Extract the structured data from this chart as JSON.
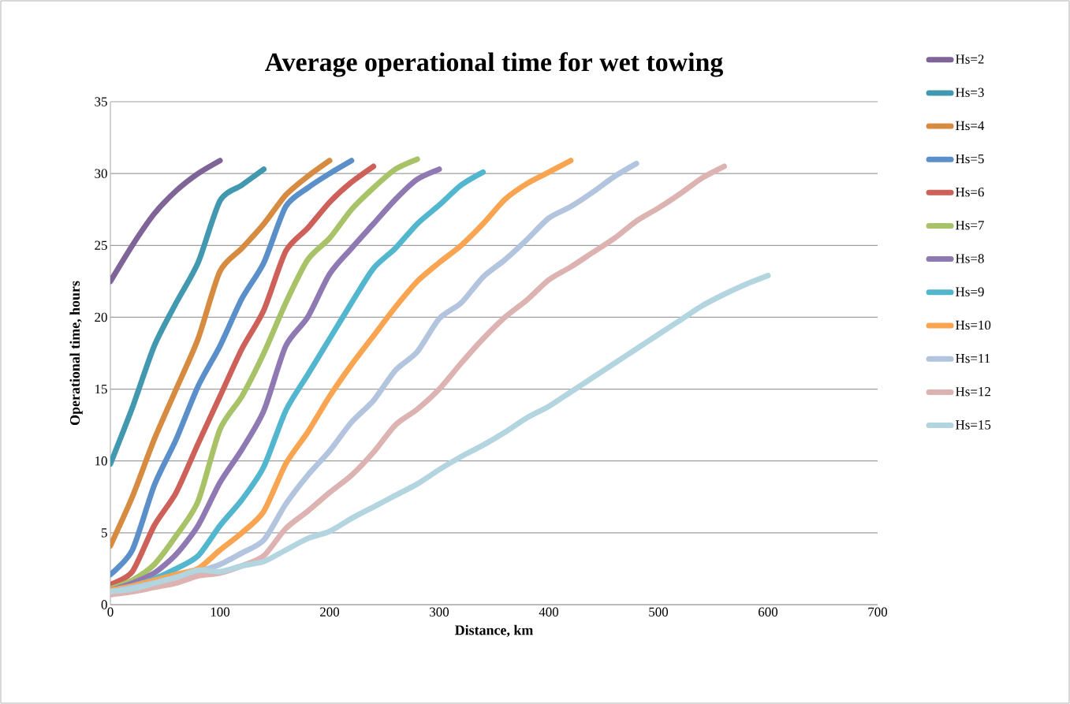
{
  "chart_data": {
    "type": "line",
    "title": "Average operational time for wet towing",
    "xlabel": "Distance, km",
    "ylabel": "Operational time, hours",
    "xlim": [
      0,
      700
    ],
    "xticks": [
      0,
      100,
      200,
      300,
      400,
      500,
      600,
      700
    ],
    "ylim": [
      0,
      35
    ],
    "yticks": [
      0,
      5,
      10,
      15,
      20,
      25,
      30,
      35
    ],
    "grid": "y",
    "legend": "right",
    "marker": "none",
    "line_style": "solid",
    "series": [
      {
        "name": "Hs=2",
        "color": "#7f6497",
        "x": [
          0,
          20,
          40,
          60,
          80,
          100
        ],
        "values": [
          22.5,
          25,
          27.2,
          28.8,
          30,
          30.9
        ]
      },
      {
        "name": "Hs=3",
        "color": "#4198af",
        "x": [
          0,
          20,
          40,
          60,
          80,
          100,
          120,
          140
        ],
        "values": [
          9.8,
          13.7,
          18,
          21,
          23.8,
          28.1,
          29.2,
          30.3
        ]
      },
      {
        "name": "Hs=4",
        "color": "#d68b41",
        "x": [
          0,
          20,
          40,
          60,
          80,
          100,
          120,
          140,
          160,
          180,
          200
        ],
        "values": [
          4.1,
          7.5,
          11.5,
          15,
          18.5,
          23.2,
          24.8,
          26.5,
          28.5,
          29.8,
          30.9
        ]
      },
      {
        "name": "Hs=5",
        "color": "#5b8fc9",
        "x": [
          0,
          20,
          40,
          60,
          80,
          100,
          120,
          140,
          160,
          180,
          200,
          220
        ],
        "values": [
          2.1,
          3.8,
          8.3,
          11.5,
          15.2,
          18,
          21.3,
          23.8,
          27.7,
          29,
          30,
          30.9
        ]
      },
      {
        "name": "Hs=6",
        "color": "#cd615a",
        "x": [
          0,
          20,
          40,
          60,
          80,
          100,
          120,
          140,
          160,
          180,
          200,
          220,
          240
        ],
        "values": [
          1.4,
          2.3,
          5.5,
          7.8,
          11.2,
          14.5,
          17.8,
          20.5,
          24.6,
          26.2,
          28,
          29.4,
          30.5
        ]
      },
      {
        "name": "Hs=7",
        "color": "#a7c267",
        "x": [
          0,
          20,
          40,
          60,
          80,
          100,
          120,
          140,
          160,
          180,
          200,
          220,
          240,
          260,
          280
        ],
        "values": [
          1.1,
          1.7,
          2.8,
          4.8,
          7.2,
          12.2,
          14.5,
          17.5,
          21,
          24,
          25.5,
          27.5,
          29,
          30.3,
          31
        ]
      },
      {
        "name": "Hs=8",
        "color": "#8f79b3",
        "x": [
          0,
          20,
          40,
          60,
          80,
          100,
          120,
          140,
          160,
          180,
          200,
          220,
          240,
          260,
          280,
          300
        ],
        "values": [
          1.0,
          1.5,
          2.2,
          3.5,
          5.5,
          8.5,
          10.8,
          13.5,
          18,
          20,
          23,
          24.8,
          26.5,
          28.2,
          29.6,
          30.3
        ]
      },
      {
        "name": "Hs=9",
        "color": "#53b6cf",
        "x": [
          0,
          20,
          40,
          60,
          80,
          100,
          120,
          140,
          160,
          180,
          200,
          220,
          240,
          260,
          280,
          300,
          320,
          340
        ],
        "values": [
          1.0,
          1.3,
          1.8,
          2.5,
          3.4,
          5.5,
          7.3,
          9.6,
          13.5,
          16,
          18.5,
          21,
          23.4,
          24.8,
          26.5,
          27.8,
          29.2,
          30.1
        ]
      },
      {
        "name": "Hs=10",
        "color": "#f9a450",
        "x": [
          0,
          20,
          40,
          60,
          80,
          100,
          120,
          140,
          160,
          180,
          200,
          220,
          240,
          260,
          280,
          300,
          320,
          340,
          360,
          380,
          400,
          420
        ],
        "values": [
          1.0,
          1.3,
          1.7,
          2.1,
          2.5,
          3.8,
          5,
          6.5,
          9.8,
          12,
          14.5,
          16.7,
          18.7,
          20.7,
          22.5,
          23.8,
          25,
          26.5,
          28.2,
          29.3,
          30.1,
          30.9
        ]
      },
      {
        "name": "Hs=11",
        "color": "#b3c5de",
        "x": [
          0,
          20,
          40,
          60,
          80,
          100,
          120,
          140,
          160,
          180,
          200,
          220,
          240,
          260,
          280,
          300,
          320,
          340,
          360,
          380,
          400,
          420,
          440,
          460,
          480
        ],
        "values": [
          0.9,
          1.2,
          1.5,
          1.9,
          2.3,
          2.8,
          3.6,
          4.5,
          7,
          9,
          10.7,
          12.7,
          14.2,
          16.3,
          17.6,
          19.9,
          21,
          22.8,
          24,
          25.4,
          26.9,
          27.7,
          28.7,
          29.8,
          30.7
        ]
      },
      {
        "name": "Hs=12",
        "color": "#ddb3b1",
        "x": [
          0,
          20,
          40,
          60,
          80,
          100,
          120,
          140,
          160,
          180,
          200,
          220,
          240,
          260,
          280,
          300,
          320,
          340,
          360,
          380,
          400,
          420,
          440,
          460,
          480,
          500,
          520,
          540,
          560
        ],
        "values": [
          0.7,
          0.9,
          1.2,
          1.5,
          2.0,
          2.2,
          2.7,
          3.4,
          5.3,
          6.5,
          7.8,
          9,
          10.6,
          12.5,
          13.6,
          15,
          16.8,
          18.5,
          20,
          21.2,
          22.6,
          23.5,
          24.5,
          25.5,
          26.7,
          27.6,
          28.6,
          29.7,
          30.5
        ]
      },
      {
        "name": "Hs=15",
        "color": "#b2d5df",
        "x": [
          0,
          20,
          40,
          60,
          80,
          100,
          120,
          140,
          160,
          180,
          200,
          220,
          240,
          260,
          280,
          300,
          320,
          340,
          360,
          380,
          400,
          420,
          440,
          460,
          480,
          500,
          520,
          540,
          560,
          580,
          600
        ],
        "values": [
          0.9,
          1.1,
          1.5,
          1.9,
          2.4,
          2.3,
          2.7,
          3.0,
          3.8,
          4.6,
          5.1,
          6.0,
          6.8,
          7.6,
          8.4,
          9.4,
          10.3,
          11.1,
          12.0,
          13.0,
          13.8,
          14.8,
          15.8,
          16.8,
          17.8,
          18.8,
          19.8,
          20.8,
          21.6,
          22.3,
          22.9
        ]
      }
    ]
  }
}
